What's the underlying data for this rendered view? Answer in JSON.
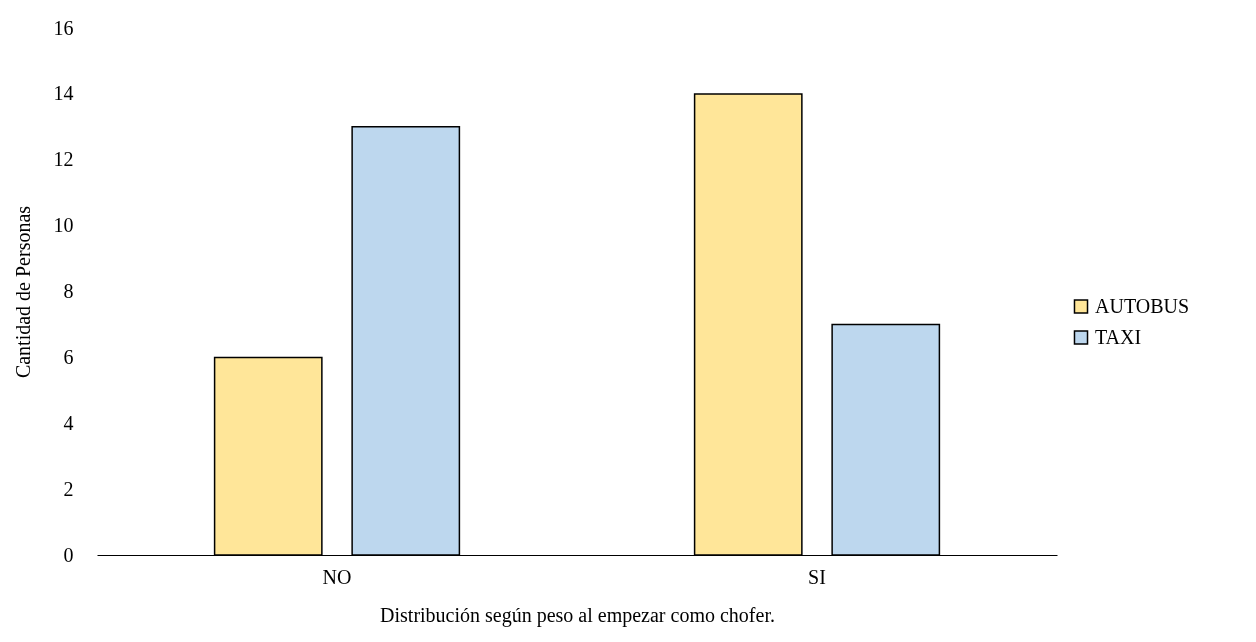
{
  "chart_data": {
    "type": "bar",
    "xlabel": "Distribución según peso al empezar como chofer.",
    "ylabel": "Cantidad de Personas",
    "categories": [
      "NO",
      "SI"
    ],
    "series": [
      {
        "name": "AUTOBUS",
        "color": "#ffe699",
        "values": [
          6,
          14
        ]
      },
      {
        "name": "TAXI",
        "color": "#bdd7ee",
        "values": [
          13,
          7
        ]
      }
    ],
    "ylim": [
      0,
      16
    ],
    "yticks": [
      0,
      2,
      4,
      6,
      8,
      10,
      12,
      14,
      16
    ],
    "legend": "right"
  }
}
